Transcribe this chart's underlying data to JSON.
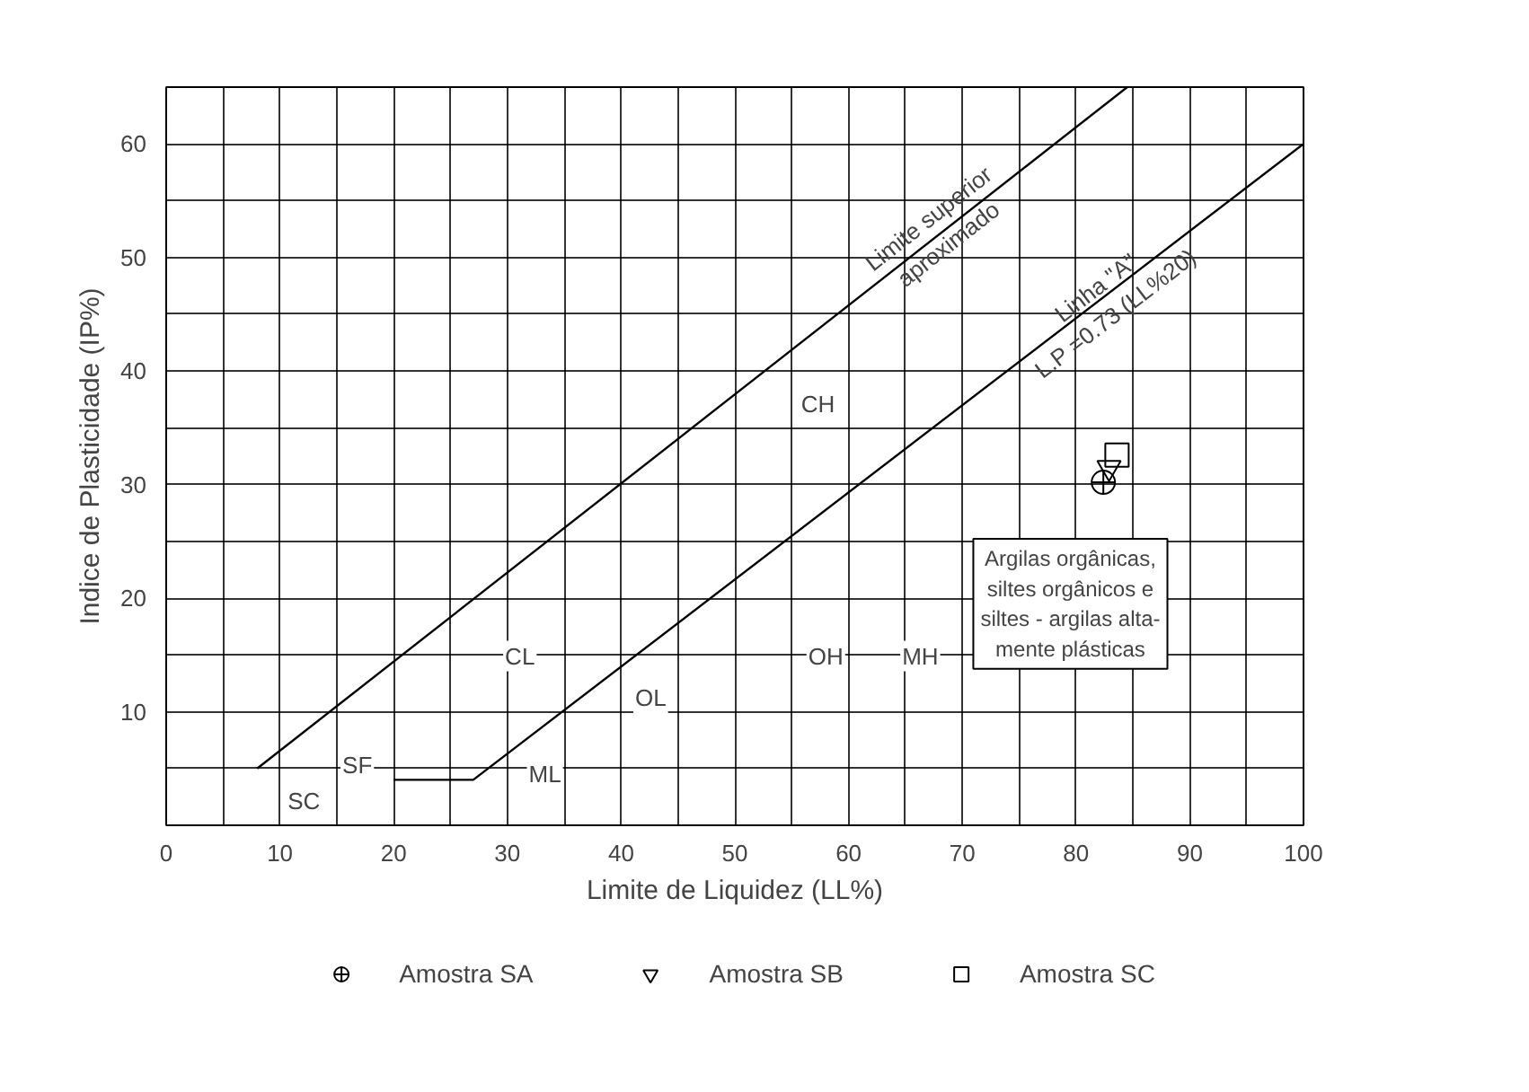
{
  "chart_data": {
    "type": "scatter",
    "xlabel": "Limite de Liquidez (LL%)",
    "ylabel": "Indice de Plasticidade (IP%)",
    "xlim": [
      0,
      100
    ],
    "ylim": [
      0,
      65
    ],
    "xticks": [
      0,
      {
        "value": 5,
        "label": null
      },
      10,
      {
        "value": 15,
        "label": null
      },
      20,
      {
        "value": 25,
        "label": null
      },
      30,
      {
        "value": 35,
        "label": null
      },
      40,
      {
        "value": 45,
        "label": null
      },
      50,
      {
        "value": 55,
        "label": null
      },
      60,
      {
        "value": 65,
        "label": null
      },
      70,
      {
        "value": 75,
        "label": null
      },
      80,
      {
        "value": 85,
        "label": null
      },
      90,
      {
        "value": 95,
        "label": null
      },
      100
    ],
    "yticks": [
      {
        "value": 0,
        "label": null
      },
      {
        "value": 5,
        "label": null
      },
      10,
      {
        "value": 15,
        "label": null
      },
      20,
      {
        "value": 25,
        "label": null
      },
      30,
      {
        "value": 35,
        "label": null
      },
      40,
      {
        "value": 45,
        "label": null
      },
      50,
      {
        "value": 55,
        "label": null
      },
      60,
      {
        "value": 65,
        "label": null
      }
    ],
    "grid": true,
    "legend": "bottom",
    "series": [
      {
        "name": "Amostra SA",
        "color": "#000000",
        "marker": "circle",
        "x": [
          82.4
        ],
        "values": [
          30.2
        ]
      },
      {
        "name": "Amostra SB",
        "color": "#000000",
        "marker": "triangle",
        "x": [
          82.9
        ],
        "values": [
          31.5
        ]
      },
      {
        "name": "Amostra SC",
        "color": "#000000",
        "marker": "square",
        "x": [
          83.6
        ],
        "values": [
          32.6
        ]
      },
      {
        "type": "line",
        "color": "#000000",
        "marker": "none",
        "x": [
          8,
          84.5
        ],
        "values": [
          5,
          65
        ]
      },
      {
        "type": "line",
        "color": "#000000",
        "marker": "none",
        "x": [
          20,
          27,
          100
        ],
        "values": [
          4,
          4,
          60
        ]
      }
    ],
    "annotations": [
      {
        "text": "Limite superior\naproximado",
        "x": 67.9,
        "y": 52.3
      },
      {
        "text": "Linha \"A\"\nL.P =0.73 (LL%20)",
        "x": 82.6,
        "y": 46.2
      },
      {
        "text": "SC",
        "x": 12.1,
        "y": 2.1
      },
      {
        "text": "SF",
        "x": 16.8,
        "y": 5.3
      },
      {
        "text": "CL",
        "x": 31.1,
        "y": 14.9
      },
      {
        "text": "ML",
        "x": 33.3,
        "y": 4.5
      },
      {
        "text": "OL",
        "x": 42.6,
        "y": 11.2
      },
      {
        "text": "CH",
        "x": 57.3,
        "y": 37.1
      },
      {
        "text": "OH",
        "x": 58.0,
        "y": 14.9
      },
      {
        "text": "MH",
        "x": 66.3,
        "y": 14.9
      },
      "Argilas orgânicas,\nsiltes orgânicos e\nsiltes - argilas alta-\nmente plásticas"
    ]
  }
}
